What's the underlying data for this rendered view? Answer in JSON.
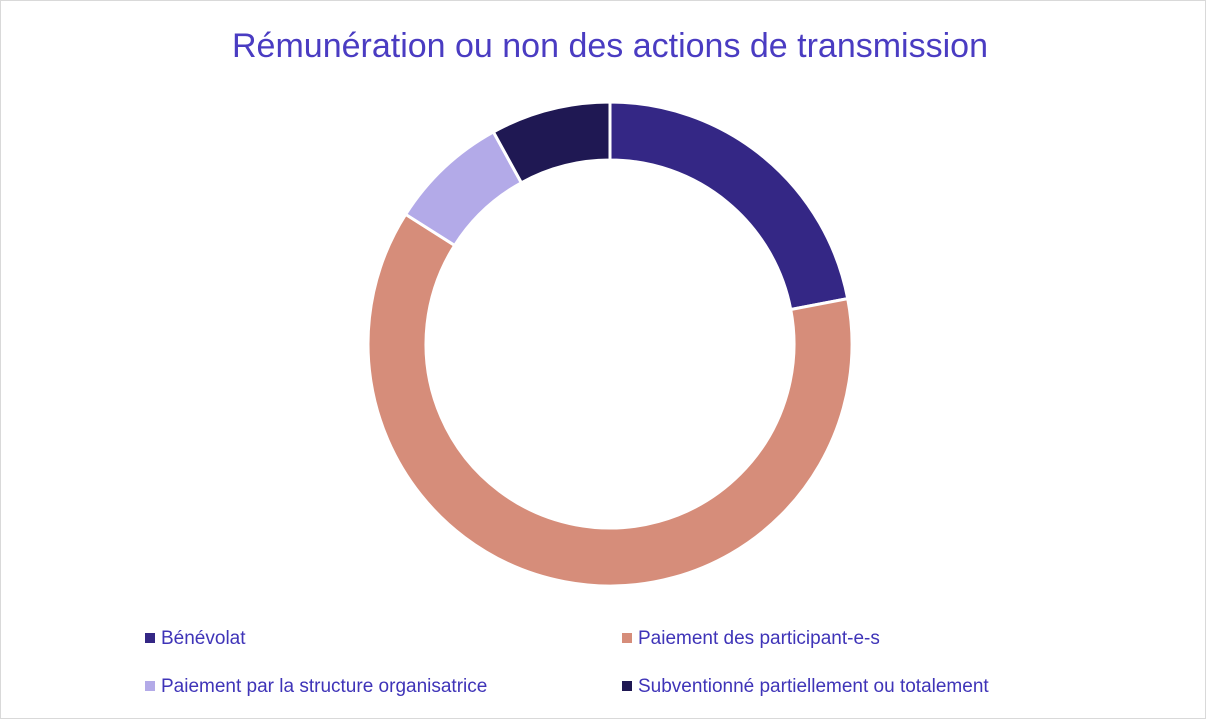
{
  "chart_data": {
    "type": "donut",
    "title": "Rémunération ou non des actions de transmission",
    "categories": [
      "Bénévolat",
      "Paiement des participant-e-s",
      "Paiement par la structure organisatrice",
      "Subventionné partiellement ou totalement"
    ],
    "values": [
      22,
      62,
      8,
      8
    ],
    "colors": [
      "#342785",
      "#d68d7a",
      "#b3aae8",
      "#1f1853"
    ],
    "legend": "bottom"
  }
}
